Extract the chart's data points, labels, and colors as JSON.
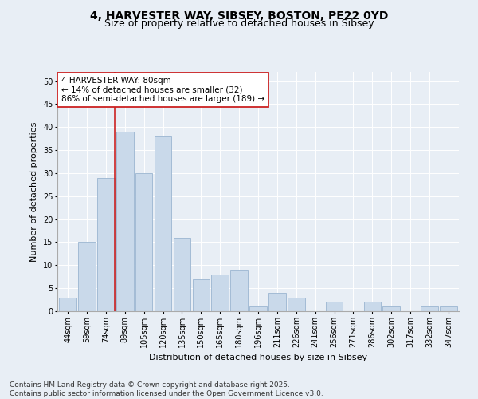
{
  "title_line1": "4, HARVESTER WAY, SIBSEY, BOSTON, PE22 0YD",
  "title_line2": "Size of property relative to detached houses in Sibsey",
  "xlabel": "Distribution of detached houses by size in Sibsey",
  "ylabel": "Number of detached properties",
  "categories": [
    "44sqm",
    "59sqm",
    "74sqm",
    "89sqm",
    "105sqm",
    "120sqm",
    "135sqm",
    "150sqm",
    "165sqm",
    "180sqm",
    "196sqm",
    "211sqm",
    "226sqm",
    "241sqm",
    "256sqm",
    "271sqm",
    "286sqm",
    "302sqm",
    "317sqm",
    "332sqm",
    "347sqm"
  ],
  "values": [
    3,
    15,
    29,
    39,
    30,
    38,
    16,
    7,
    8,
    9,
    1,
    4,
    3,
    0,
    2,
    0,
    2,
    1,
    0,
    1,
    1
  ],
  "bar_color": "#c9d9ea",
  "bar_edge_color": "#9ab5d0",
  "vline_color": "#cc2222",
  "vline_bar_idx": 2,
  "annotation_line1": "4 HARVESTER WAY: 80sqm",
  "annotation_line2": "← 14% of detached houses are smaller (32)",
  "annotation_line3": "86% of semi-detached houses are larger (189) →",
  "annotation_box_facecolor": "#ffffff",
  "annotation_box_edgecolor": "#cc2222",
  "ylim": [
    0,
    52
  ],
  "yticks": [
    0,
    5,
    10,
    15,
    20,
    25,
    30,
    35,
    40,
    45,
    50
  ],
  "background_color": "#e8eef5",
  "plot_bg_color": "#e8eef5",
  "footer_text": "Contains HM Land Registry data © Crown copyright and database right 2025.\nContains public sector information licensed under the Open Government Licence v3.0.",
  "title_fontsize": 10,
  "subtitle_fontsize": 9,
  "ylabel_fontsize": 8,
  "xlabel_fontsize": 8,
  "tick_fontsize": 7,
  "annotation_fontsize": 7.5,
  "footer_fontsize": 6.5
}
